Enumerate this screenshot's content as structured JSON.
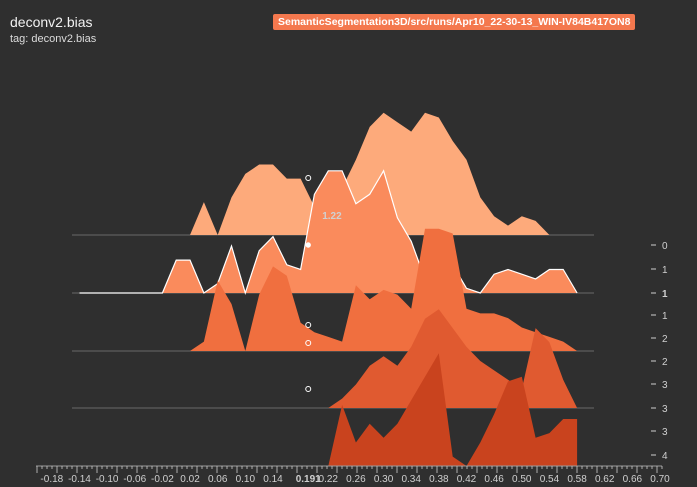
{
  "header": {
    "title": "deconv2.bias",
    "tag": "tag: deconv2.bias",
    "run_badge": "SemanticSegmentation3D/src/runs/Apr10_22-30-13_WIN-IV84B417ON8"
  },
  "hover": {
    "value_label": "1.22",
    "x_label": "0.191"
  },
  "chart_data": {
    "type": "area",
    "title": "deconv2.bias",
    "subtitle": "tag: deconv2.bias",
    "x_ticks": [
      "-0.18",
      "-0.14",
      "-0.10",
      "-0.06",
      "-0.02",
      "0.02",
      "0.06",
      "0.10",
      "0.14",
      "0.191",
      "0.22",
      "0.26",
      "0.30",
      "0.34",
      "0.38",
      "0.42",
      "0.46",
      "0.50",
      "0.54",
      "0.58",
      "0.62",
      "0.66",
      "0.70"
    ],
    "x_range": [
      -0.2,
      0.7
    ],
    "step_labels": [
      "0",
      "1",
      "1",
      "1",
      "2",
      "2",
      "3",
      "3",
      "3",
      "4"
    ],
    "highlighted_step": "1",
    "colors": {
      "step0": "#fdaa7b",
      "step1": "#fa8b5c",
      "step2": "#f06f3f",
      "step3": "#e05a30",
      "step4": "#c9431e",
      "background": "#2f2f2f",
      "badge": "#f4784e"
    },
    "series": [
      {
        "name": "0",
        "x": [
          0.02,
          0.04,
          0.06,
          0.08,
          0.1,
          0.12,
          0.14,
          0.16,
          0.18,
          0.2,
          0.22,
          0.24,
          0.26,
          0.28,
          0.3,
          0.32,
          0.34,
          0.36,
          0.38,
          0.4,
          0.42,
          0.44,
          0.46,
          0.48,
          0.5,
          0.52,
          0.54,
          0.56,
          0.58
        ],
        "y": [
          0,
          0.7,
          0,
          0.8,
          1.3,
          1.5,
          1.5,
          1.2,
          1.2,
          0.6,
          0,
          1.0,
          1.6,
          2.3,
          2.6,
          2.4,
          2.2,
          2.6,
          2.5,
          2.0,
          1.6,
          0.8,
          0.4,
          0.2,
          0.4,
          0.3,
          0,
          0,
          0
        ]
      },
      {
        "name": "1",
        "x": [
          -0.14,
          -0.02,
          0.0,
          0.02,
          0.04,
          0.06,
          0.08,
          0.1,
          0.12,
          0.14,
          0.16,
          0.18,
          0.2,
          0.22,
          0.24,
          0.26,
          0.28,
          0.3,
          0.32,
          0.34,
          0.36,
          0.38,
          0.4,
          0.42,
          0.44,
          0.46,
          0.48,
          0.5,
          0.52,
          0.54,
          0.56,
          0.58
        ],
        "y": [
          0,
          0,
          0.7,
          0.7,
          0,
          0.2,
          1.0,
          0,
          0.9,
          1.2,
          0.6,
          0.5,
          2.1,
          2.6,
          2.6,
          1.9,
          2.1,
          2.6,
          1.6,
          1.1,
          0.3,
          0,
          0.6,
          0.1,
          0,
          0.4,
          0.5,
          0.4,
          0.3,
          0.5,
          0.5,
          0
        ]
      },
      {
        "name": "2",
        "x": [
          0.02,
          0.04,
          0.06,
          0.08,
          0.1,
          0.12,
          0.14,
          0.16,
          0.18,
          0.2,
          0.22,
          0.24,
          0.26,
          0.28,
          0.3,
          0.32,
          0.34,
          0.36,
          0.38,
          0.4,
          0.42,
          0.44,
          0.46,
          0.48,
          0.5,
          0.52,
          0.54,
          0.56,
          0.58
        ],
        "y": [
          0,
          0.2,
          1.5,
          1.0,
          0,
          1.2,
          1.8,
          1.6,
          0.6,
          0.4,
          0.3,
          0.2,
          1.4,
          1.1,
          1.3,
          1.2,
          0.9,
          2.6,
          2.6,
          2.5,
          0.9,
          0.8,
          0.8,
          0.7,
          0.5,
          0.4,
          0.3,
          0.2,
          0
        ]
      },
      {
        "name": "3",
        "x": [
          0.22,
          0.24,
          0.26,
          0.28,
          0.3,
          0.32,
          0.34,
          0.36,
          0.38,
          0.4,
          0.42,
          0.44,
          0.46,
          0.48,
          0.5,
          0.52,
          0.54,
          0.56,
          0.58
        ],
        "y": [
          0,
          0.2,
          0.5,
          0.9,
          1.1,
          0.9,
          1.3,
          1.9,
          2.1,
          1.7,
          1.3,
          1.0,
          0.8,
          0.6,
          0.4,
          1.7,
          1.4,
          0.6,
          0
        ]
      },
      {
        "name": "4",
        "x": [
          0.22,
          0.24,
          0.26,
          0.28,
          0.3,
          0.32,
          0.34,
          0.36,
          0.38,
          0.4,
          0.42,
          0.44,
          0.46,
          0.48,
          0.5,
          0.52,
          0.54,
          0.56,
          0.58
        ],
        "y": [
          0,
          1.3,
          0.5,
          0.9,
          0.6,
          0.9,
          1.4,
          1.9,
          2.4,
          0.2,
          0,
          0.5,
          1.1,
          1.8,
          1.9,
          0.6,
          0.7,
          1.0,
          1.0
        ]
      }
    ]
  }
}
